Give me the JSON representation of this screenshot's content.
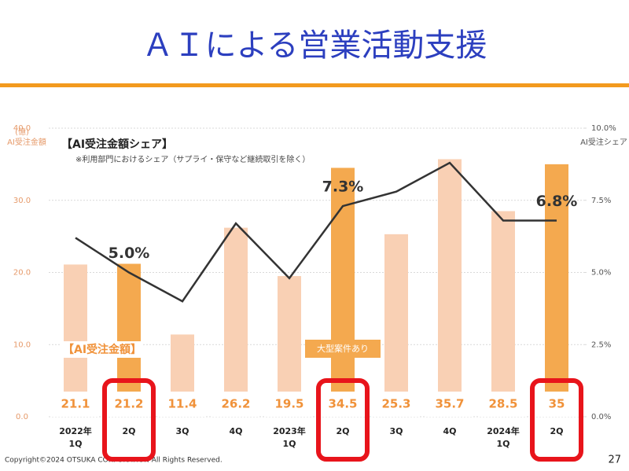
{
  "header": {
    "title": "ＡＩによる営業活動支援"
  },
  "chart_data": {
    "type": "bar",
    "categories": [
      "2022年\n1Q",
      "2Q",
      "3Q",
      "4Q",
      "2023年\n1Q",
      "2Q",
      "3Q",
      "4Q",
      "2024年\n1Q",
      "2Q"
    ],
    "series": [
      {
        "name": "【AI受注金額】",
        "type": "bar",
        "values": [
          21.1,
          21.2,
          11.4,
          26.2,
          19.5,
          34.5,
          25.3,
          35.7,
          28.5,
          35.0
        ],
        "colors": [
          "#f9d0b4",
          "#f4a94f",
          "#f9d0b4",
          "#f9d0b4",
          "#f9d0b4",
          "#f4a94f",
          "#f9d0b4",
          "#f9d0b4",
          "#f9d0b4",
          "#f4a94f"
        ]
      },
      {
        "name": "【AI受注金額シェア】",
        "type": "line",
        "axis": "y2",
        "color": "#333333",
        "values": [
          6.2,
          5.0,
          4.0,
          6.7,
          4.8,
          7.3,
          7.8,
          8.8,
          6.8,
          6.8
        ],
        "value_labels": [
          null,
          "5.0%",
          null,
          null,
          null,
          "7.3%",
          null,
          null,
          null,
          "6.8%"
        ]
      }
    ],
    "ylim": [
      0,
      40
    ],
    "yticks": [
      {
        "value": 0,
        "label": "0.0"
      },
      {
        "value": 10,
        "label": "10.0"
      },
      {
        "value": 20,
        "label": "20.0"
      },
      {
        "value": 30,
        "label": "30.0"
      },
      {
        "value": 40,
        "label": "40.0"
      }
    ],
    "y2lim": [
      0,
      10
    ],
    "y2ticks": [
      {
        "value": 0,
        "label": "0.0%"
      },
      {
        "value": 2.5,
        "label": "2.5%"
      },
      {
        "value": 5,
        "label": "5.0%"
      },
      {
        "value": 7.5,
        "label": "7.5%"
      },
      {
        "value": 10,
        "label": "10.0%"
      }
    ],
    "ylabel_unit": "(億)",
    "ylabel": "AI受注金額",
    "y2label": "AI受注シェア",
    "line_note": "※利用部門におけるシェア（サプライ・保守など継続取引を除く）",
    "annotation": "大型案件あり",
    "highlight_color": "#e8141b",
    "grid": true
  },
  "footer": {
    "copyright": "Copyright©2024 OTSUKA CORPORATION All Rights Reserved.",
    "page": "27"
  }
}
